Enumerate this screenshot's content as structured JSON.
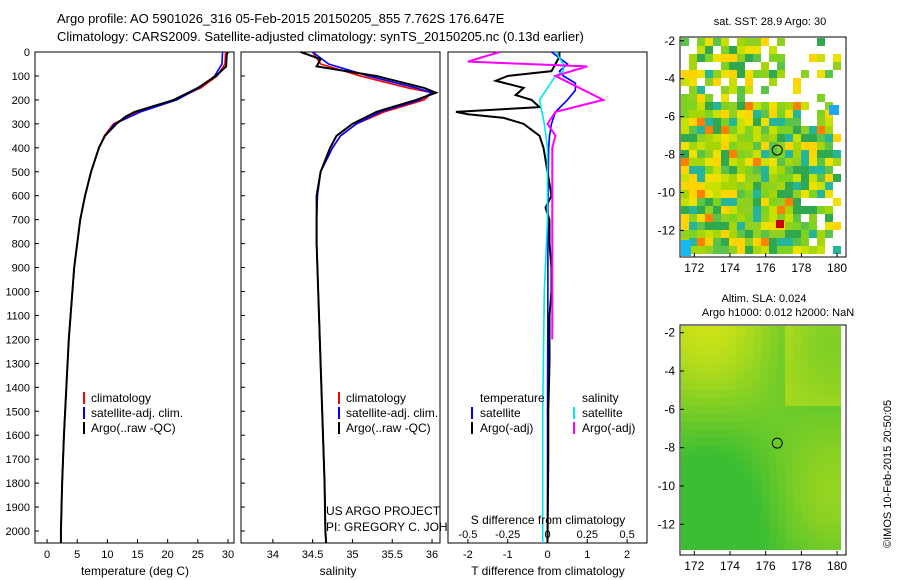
{
  "header": {
    "line1": "Argo profile: AO 5901026_316 05-Feb-2015 20150205_855 7.762S 176.647E",
    "line2": "Climatology: CARS2009. Satellite-adjusted climatology: synTS_20150205.nc (0.13d earlier)"
  },
  "maps": {
    "sst_title": "sat. SST: 28.9 Argo: 30",
    "sla_title1": "Altim. SLA: 0.024",
    "sla_title2": "Argo h1000: 0.012 h2000: NaN",
    "credit": "©IMOS 10-Feb-2015 20:50:05",
    "x_ticks": [
      "172",
      "174",
      "176",
      "178",
      "180"
    ],
    "y_ticks": [
      "-2",
      "-4",
      "-6",
      "-8",
      "-10",
      "-12"
    ],
    "argo_lat": -7.762,
    "argo_lon": 176.647
  },
  "footer": {
    "project": "US ARGO PROJECT",
    "pi": "PI: GREGORY C. JOHNSON"
  },
  "colors": {
    "climatology": "#ff0000",
    "satellite": "#0000ff",
    "argo": "#000000",
    "salinity_satellite": "#00e5ee",
    "salinity_argo": "#ff00ff"
  },
  "chart_data": [
    {
      "type": "line",
      "id": "temperature",
      "xlabel": "temperature (deg C)",
      "ylabel": "",
      "xlim": [
        -2,
        31
      ],
      "ylim": [
        2050,
        0
      ],
      "x_ticks": [
        "0",
        "5",
        "10",
        "15",
        "20",
        "25",
        "30"
      ],
      "y_ticks": [
        "0",
        "100",
        "200",
        "300",
        "400",
        "500",
        "600",
        "700",
        "800",
        "900",
        "1000",
        "1100",
        "1200",
        "1300",
        "1400",
        "1500",
        "1600",
        "1700",
        "1800",
        "1900",
        "2000"
      ],
      "legend": [
        "climatology",
        "satellite-adj. clim.",
        "Argo(..raw -QC)"
      ],
      "series": [
        {
          "name": "climatology",
          "depth": [
            0,
            50,
            100,
            150,
            200,
            250,
            300,
            350,
            400,
            500,
            600,
            700,
            800,
            900,
            1000,
            1200,
            1400,
            1600,
            1800,
            2000,
            2050
          ],
          "values": [
            29.6,
            29.5,
            28.2,
            25.5,
            21,
            15,
            11,
            9.5,
            8.6,
            7.3,
            6.3,
            5.5,
            5,
            4.5,
            4.2,
            3.6,
            3.2,
            2.8,
            2.5,
            2.3,
            2.3
          ]
        },
        {
          "name": "satellite-adj. clim.",
          "depth": [
            0,
            50,
            100,
            150,
            200,
            250,
            300,
            350,
            400,
            500,
            600,
            700,
            800,
            900,
            1000,
            1200,
            1400,
            1600,
            1800,
            2000,
            2050
          ],
          "values": [
            29.1,
            29.0,
            27.8,
            25.2,
            21.5,
            15.5,
            11.2,
            9.6,
            8.6,
            7.3,
            6.3,
            5.5,
            5,
            4.5,
            4.2,
            3.6,
            3.2,
            2.8,
            2.5,
            2.3,
            2.3
          ]
        },
        {
          "name": "Argo(..raw -QC)",
          "depth": [
            0,
            10,
            60,
            100,
            150,
            200,
            250,
            270,
            300,
            350,
            400,
            500,
            600,
            700,
            800,
            900,
            1000,
            1200,
            1400,
            1600,
            1800,
            2000,
            2050
          ],
          "values": [
            30,
            29.8,
            29.7,
            28,
            25,
            21,
            14.5,
            13,
            11.5,
            9.6,
            8.6,
            7.3,
            6.3,
            5.5,
            5,
            4.5,
            4.2,
            3.6,
            3.2,
            2.8,
            2.5,
            2.3,
            2.3
          ]
        }
      ]
    },
    {
      "type": "line",
      "id": "salinity",
      "xlabel": "salinity",
      "xlim": [
        33.6,
        36.1
      ],
      "ylim": [
        2050,
        0
      ],
      "x_ticks": [
        "34",
        "34.5",
        "35",
        "35.5",
        "36"
      ],
      "legend": [
        "climatology",
        "satellite-adj. clim.",
        "Argo(..raw -QC)"
      ],
      "series": [
        {
          "name": "climatology",
          "depth": [
            0,
            50,
            100,
            150,
            170,
            200,
            250,
            300,
            350,
            400,
            500,
            600,
            700,
            800,
            900,
            1000,
            1200,
            1400,
            1600,
            1800,
            2000,
            2050
          ],
          "values": [
            34.5,
            34.6,
            35.1,
            35.7,
            36.0,
            35.9,
            35.4,
            35.05,
            34.85,
            34.75,
            34.6,
            34.56,
            34.55,
            34.55,
            34.56,
            34.57,
            34.59,
            34.61,
            34.63,
            34.65,
            34.66,
            34.67
          ]
        },
        {
          "name": "satellite-adj. clim.",
          "depth": [
            0,
            50,
            100,
            150,
            170,
            200,
            250,
            300,
            350,
            400,
            500,
            600,
            700,
            800,
            900,
            1000,
            1200,
            1400,
            1600,
            1800,
            2000,
            2050
          ],
          "values": [
            34.5,
            34.7,
            35.2,
            35.8,
            36.0,
            35.85,
            35.35,
            35.05,
            34.85,
            34.75,
            34.6,
            34.56,
            34.55,
            34.55,
            34.56,
            34.57,
            34.59,
            34.61,
            34.63,
            34.65,
            34.66,
            34.67
          ]
        },
        {
          "name": "Argo(..raw -QC)",
          "depth": [
            0,
            30,
            60,
            100,
            150,
            170,
            200,
            250,
            300,
            350,
            400,
            500,
            600,
            700,
            800,
            900,
            1000,
            1200,
            1400,
            1600,
            1800,
            2000,
            2050
          ],
          "values": [
            34.35,
            34.6,
            34.55,
            35.3,
            35.9,
            36.05,
            35.8,
            35.3,
            35.0,
            34.8,
            34.72,
            34.6,
            34.55,
            34.55,
            34.55,
            34.56,
            34.57,
            34.59,
            34.61,
            34.63,
            34.65,
            34.66,
            34.67
          ]
        }
      ]
    },
    {
      "type": "line",
      "id": "difference",
      "xlabel": "T difference from climatology",
      "xlabel_top": "S difference from climatology",
      "xlim": [
        -2.5,
        2.5
      ],
      "ylim": [
        2050,
        0
      ],
      "x_ticks": [
        "-2",
        "-1",
        "0",
        "1",
        "2"
      ],
      "x_ticks_salinity": [
        "-0.5",
        "-0.25",
        "0",
        "0.25",
        "0.5"
      ],
      "legend_temperature": [
        "temperature",
        "satellite",
        "Argo(-adj)"
      ],
      "legend_salinity": [
        "salinity",
        "satellite",
        "Argo(-adj)"
      ],
      "series": [
        {
          "name": "temperature satellite",
          "depth": [
            0,
            50,
            80,
            100,
            130,
            160,
            200,
            250,
            300,
            350,
            400,
            500,
            700,
            1000,
            1500,
            2050
          ],
          "values": [
            0.1,
            0.5,
            0.3,
            0.4,
            0.7,
            0.7,
            0.5,
            0.2,
            0.1,
            0.05,
            0.03,
            0.02,
            0.01,
            0.01,
            0,
            0
          ]
        },
        {
          "name": "temperature Argo(-adj)",
          "depth": [
            0,
            20,
            50,
            80,
            100,
            120,
            150,
            180,
            200,
            230,
            250,
            260,
            275,
            300,
            350,
            400,
            450,
            500,
            550,
            600,
            650,
            700,
            800,
            900,
            1000,
            1100,
            1200,
            1300,
            1500,
            1700,
            2050
          ],
          "values": [
            0.3,
            0.3,
            0.2,
            0.1,
            -1.0,
            -1.3,
            -0.6,
            -0.8,
            -0.4,
            -0.2,
            -2.3,
            -2.0,
            -1.1,
            -0.6,
            -0.2,
            -0.1,
            -0.05,
            0,
            0.05,
            0.1,
            -0.05,
            0.05,
            0.05,
            0.1,
            0.1,
            0.05,
            0.05,
            0.05,
            0.02,
            0.02,
            0
          ]
        },
        {
          "name": "salinity satellite",
          "depth": [
            0,
            50,
            80,
            100,
            150,
            200,
            300,
            400,
            500,
            700,
            1000,
            1500,
            2050
          ],
          "values": [
            0.05,
            0.1,
            0.1,
            0.05,
            0,
            -0.05,
            -0.02,
            0,
            0,
            0,
            -0.02,
            -0.03,
            -0.03
          ]
        },
        {
          "name": "salinity Argo(-adj)",
          "depth": [
            0,
            40,
            60,
            100,
            150,
            200,
            250,
            300,
            350,
            400,
            500,
            600,
            700,
            800,
            900,
            1000,
            1100,
            1200
          ],
          "values": [
            -0.3,
            -0.5,
            0.25,
            0.05,
            0.2,
            0.35,
            0.05,
            0,
            0.05,
            0.03,
            0.03,
            0.03,
            0.03,
            0.03,
            0.03,
            0.03,
            0.03,
            0.03
          ]
        }
      ]
    }
  ]
}
